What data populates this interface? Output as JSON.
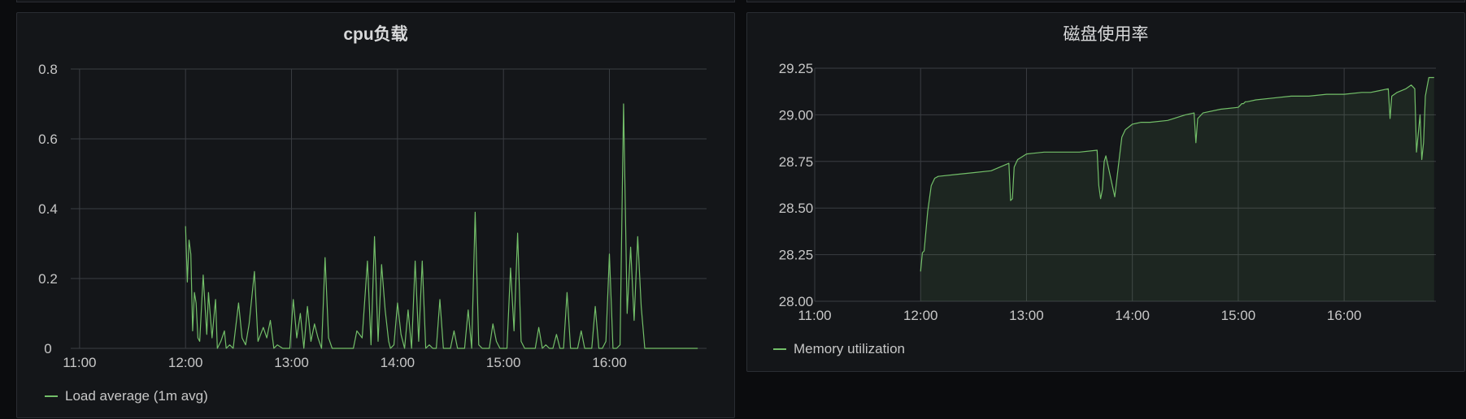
{
  "panels": [
    {
      "title": "cpu负载",
      "legend": "Load average (1m avg)",
      "color": "#73bf69"
    },
    {
      "title": "磁盘使用率",
      "legend": "Memory utilization",
      "color": "#73bf69"
    }
  ],
  "chart_data": [
    {
      "type": "line",
      "title": "cpu负载",
      "xlabel": "",
      "ylabel": "",
      "x_ticks": [
        "11:00",
        "12:00",
        "13:00",
        "14:00",
        "15:00",
        "16:00"
      ],
      "y_ticks": [
        "0",
        "0.2",
        "0.4",
        "0.6",
        "0.8"
      ],
      "xlim": [
        "10:55",
        "16:55"
      ],
      "ylim": [
        0,
        0.8
      ],
      "grid": true,
      "legend_position": "bottom-left",
      "series": [
        {
          "name": "Load average (1m avg)",
          "fill": false,
          "x": [
            "12:00",
            "12:01",
            "12:02",
            "12:03",
            "12:04",
            "12:05",
            "12:06",
            "12:07",
            "12:08",
            "12:10",
            "12:12",
            "12:13",
            "12:15",
            "12:17",
            "12:18",
            "12:20",
            "12:22",
            "12:23",
            "12:25",
            "12:27",
            "12:30",
            "12:32",
            "12:34",
            "12:36",
            "12:39",
            "12:41",
            "12:44",
            "12:46",
            "12:48",
            "12:50",
            "12:52",
            "12:55",
            "12:57",
            "12:59",
            "13:01",
            "13:03",
            "13:05",
            "13:07",
            "13:09",
            "13:11",
            "13:13",
            "13:15",
            "13:17",
            "13:19",
            "13:21",
            "13:23",
            "13:25",
            "13:27",
            "13:29",
            "13:31",
            "13:33",
            "13:35",
            "13:37",
            "13:40",
            "13:43",
            "13:45",
            "13:47",
            "13:49",
            "13:51",
            "13:53",
            "13:55",
            "13:56",
            "13:58",
            "14:00",
            "14:02",
            "14:04",
            "14:06",
            "14:08",
            "14:10",
            "14:12",
            "14:14",
            "14:16",
            "14:18",
            "14:20",
            "14:22",
            "14:24",
            "14:26",
            "14:28",
            "14:30",
            "14:32",
            "14:34",
            "14:36",
            "14:38",
            "14:40",
            "14:42",
            "14:44",
            "14:46",
            "14:48",
            "14:50",
            "14:52",
            "14:54",
            "14:56",
            "14:58",
            "15:00",
            "15:02",
            "15:04",
            "15:06",
            "15:08",
            "15:10",
            "15:12",
            "15:14",
            "15:16",
            "15:18",
            "15:20",
            "15:22",
            "15:24",
            "15:26",
            "15:28",
            "15:30",
            "15:32",
            "15:34",
            "15:36",
            "15:38",
            "15:40",
            "15:42",
            "15:44",
            "15:46",
            "15:48",
            "15:50",
            "15:52",
            "15:54",
            "15:56",
            "15:58",
            "16:00",
            "16:02",
            "16:04",
            "16:06",
            "16:08",
            "16:10",
            "16:12",
            "16:14",
            "16:16",
            "16:18",
            "16:20",
            "16:22",
            "16:24",
            "16:26",
            "16:28",
            "16:30",
            "16:32",
            "16:34",
            "16:36",
            "16:38",
            "16:40",
            "16:42",
            "16:43",
            "16:44",
            "16:45",
            "16:46",
            "16:47",
            "16:48",
            "16:49",
            "16:50"
          ],
          "values": [
            0.35,
            0.19,
            0.31,
            0.27,
            0.05,
            0.16,
            0.13,
            0.03,
            0.02,
            0.21,
            0.04,
            0.16,
            0.03,
            0.14,
            0.0,
            0.02,
            0.05,
            0.0,
            0.01,
            0.0,
            0.13,
            0.03,
            0.01,
            0.07,
            0.22,
            0.02,
            0.06,
            0.03,
            0.08,
            0.0,
            0.01,
            0.0,
            0.0,
            0.0,
            0.14,
            0.03,
            0.1,
            0.0,
            0.12,
            0.02,
            0.07,
            0.03,
            0.0,
            0.26,
            0.03,
            0.0,
            0.0,
            0.0,
            0.0,
            0.0,
            0.0,
            0.0,
            0.05,
            0.03,
            0.25,
            0.01,
            0.32,
            0.02,
            0.24,
            0.11,
            0.02,
            0.0,
            0.01,
            0.13,
            0.04,
            0.0,
            0.11,
            0.0,
            0.25,
            0.02,
            0.25,
            0.0,
            0.01,
            0.0,
            0.0,
            0.14,
            0.0,
            0.0,
            0.0,
            0.05,
            0.0,
            0.0,
            0.0,
            0.11,
            0.0,
            0.39,
            0.01,
            0.0,
            0.0,
            0.0,
            0.07,
            0.02,
            0.0,
            0.0,
            0.0,
            0.23,
            0.05,
            0.33,
            0.02,
            0.0,
            0.0,
            0.0,
            0.0,
            0.06,
            0.0,
            0.01,
            0.0,
            0.0,
            0.04,
            0.0,
            0.0,
            0.16,
            0.0,
            0.0,
            0.0,
            0.05,
            0.0,
            0.0,
            0.0,
            0.12,
            0.0,
            0.0,
            0.02,
            0.27,
            0.0,
            0.0,
            0.01,
            0.7,
            0.1,
            0.29,
            0.08,
            0.32,
            0.12,
            0.0,
            0.0,
            0.0,
            0.0,
            0.0,
            0.0,
            0.0,
            0.0,
            0.0,
            0.0,
            0.0,
            0.0,
            0.0,
            0.0,
            0.0,
            0.0,
            0.0,
            0.0,
            0.0,
            0.0
          ]
        }
      ]
    },
    {
      "type": "area",
      "title": "磁盘使用率",
      "xlabel": "",
      "ylabel": "",
      "x_ticks": [
        "11:00",
        "12:00",
        "13:00",
        "14:00",
        "15:00",
        "16:00"
      ],
      "y_ticks": [
        "28.00",
        "28.25",
        "28.50",
        "28.75",
        "29.00",
        "29.25"
      ],
      "xlim": [
        "11:00",
        "16:52"
      ],
      "ylim": [
        28.0,
        29.25
      ],
      "grid": true,
      "legend_position": "bottom-left",
      "series": [
        {
          "name": "Memory utilization",
          "fill": true,
          "x": [
            "12:00",
            "12:01",
            "12:02",
            "12:04",
            "12:06",
            "12:08",
            "12:10",
            "12:20",
            "12:30",
            "12:40",
            "12:50",
            "12:51",
            "12:52",
            "12:53",
            "12:54",
            "12:55",
            "13:00",
            "13:10",
            "13:20",
            "13:30",
            "13:40",
            "13:41",
            "13:42",
            "13:43",
            "13:44",
            "13:45",
            "13:50",
            "13:52",
            "13:54",
            "13:56",
            "14:00",
            "14:05",
            "14:10",
            "14:20",
            "14:30",
            "14:35",
            "14:36",
            "14:37",
            "14:40",
            "14:50",
            "15:00",
            "15:01",
            "15:02",
            "15:03",
            "15:04",
            "15:05",
            "15:10",
            "15:20",
            "15:30",
            "15:40",
            "15:50",
            "16:00",
            "16:10",
            "16:15",
            "16:20",
            "16:25",
            "16:26",
            "16:27",
            "16:30",
            "16:35",
            "16:38",
            "16:40",
            "16:41",
            "16:42",
            "16:43",
            "16:44",
            "16:45",
            "16:46",
            "16:47",
            "16:48",
            "16:50",
            "16:51"
          ],
          "values": [
            28.16,
            28.26,
            28.27,
            28.48,
            28.62,
            28.66,
            28.67,
            28.68,
            28.69,
            28.7,
            28.74,
            28.54,
            28.55,
            28.72,
            28.74,
            28.76,
            28.79,
            28.8,
            28.8,
            28.8,
            28.81,
            28.62,
            28.55,
            28.6,
            28.75,
            28.78,
            28.56,
            28.72,
            28.88,
            28.92,
            28.95,
            28.96,
            28.96,
            28.97,
            29.0,
            29.01,
            28.85,
            28.98,
            29.01,
            29.03,
            29.04,
            29.05,
            29.06,
            29.06,
            29.07,
            29.07,
            29.08,
            29.09,
            29.1,
            29.1,
            29.11,
            29.11,
            29.12,
            29.12,
            29.13,
            29.14,
            28.98,
            29.1,
            29.12,
            29.14,
            29.16,
            29.14,
            28.8,
            28.9,
            29.0,
            28.76,
            28.85,
            29.1,
            29.15,
            29.2,
            29.2,
            29.2
          ]
        }
      ]
    }
  ]
}
